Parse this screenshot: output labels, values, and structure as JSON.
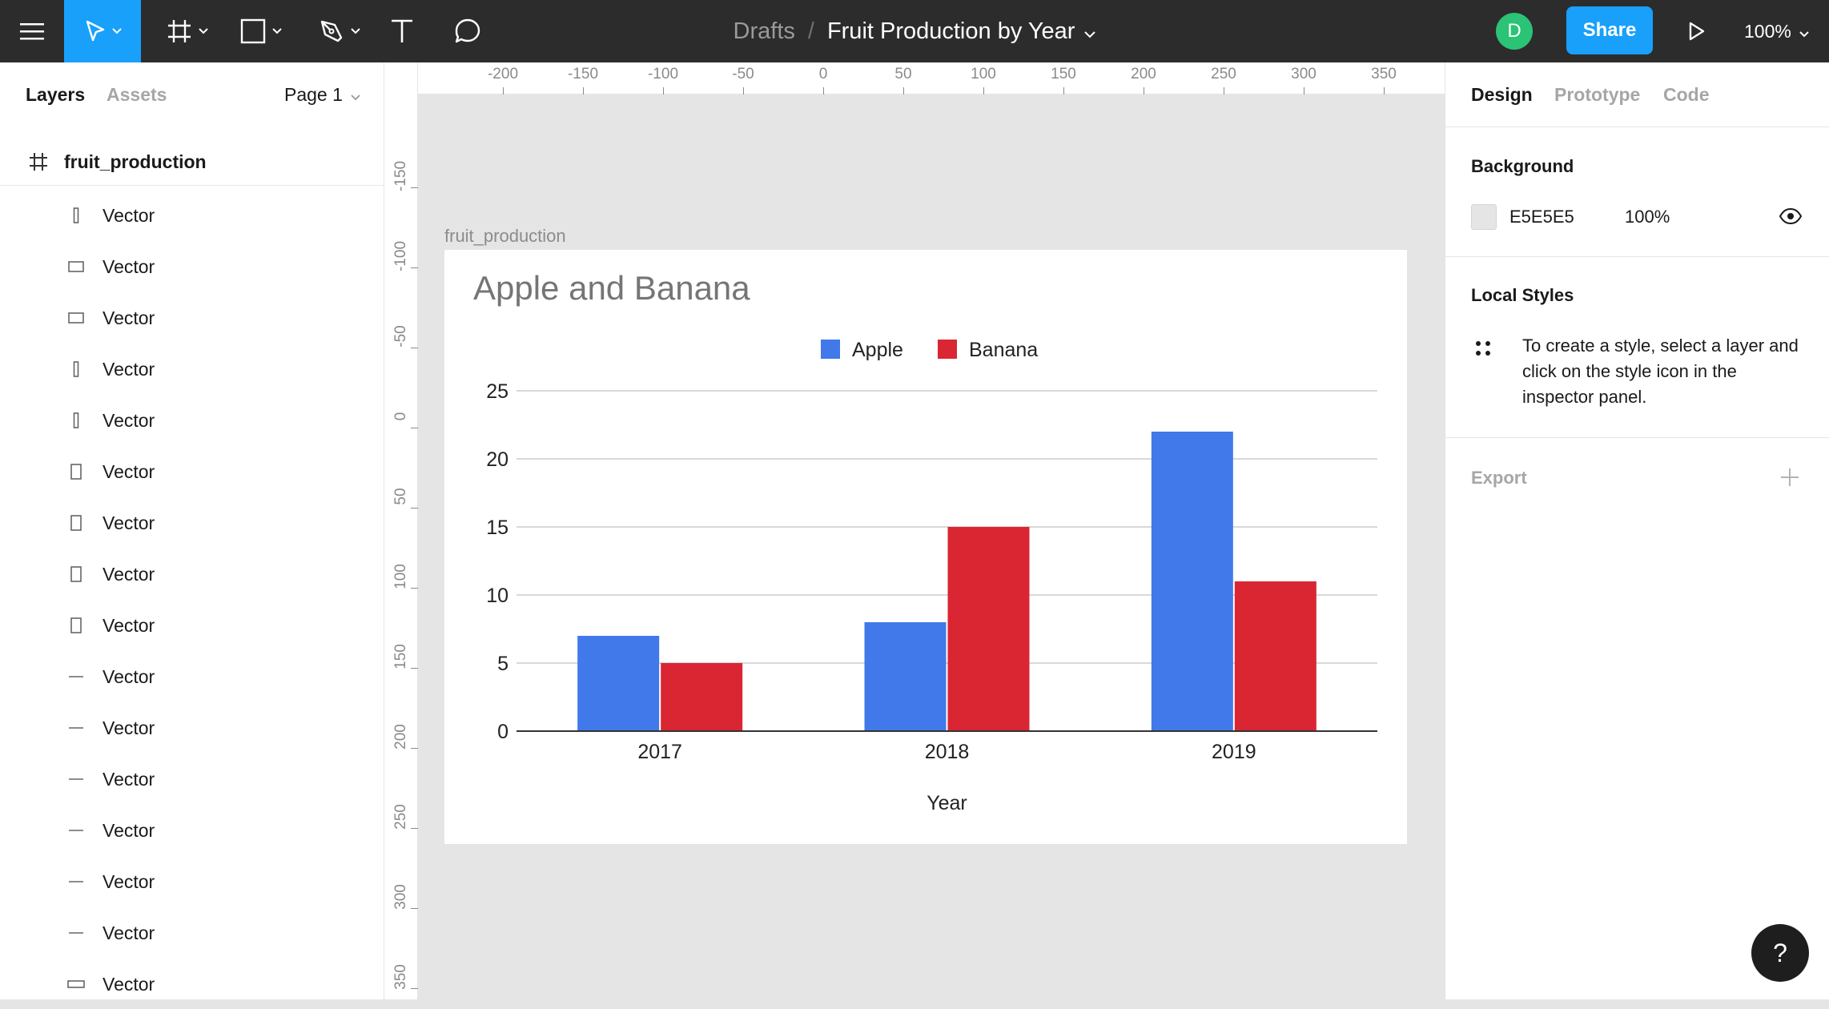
{
  "toolbar": {
    "breadcrumb_root": "Drafts",
    "breadcrumb_sep": "/",
    "file_name": "Fruit Production by Year",
    "avatar_initial": "D",
    "share_label": "Share",
    "zoom": "100%",
    "icons": [
      "menu-icon",
      "move-tool-icon",
      "frame-tool-icon",
      "rectangle-tool-icon",
      "pen-tool-icon",
      "text-tool-icon",
      "comment-tool-icon",
      "present-icon"
    ],
    "accent_color": "#18a0fb"
  },
  "left_panel": {
    "tab_layers": "Layers",
    "tab_assets": "Assets",
    "page": "Page 1",
    "frame_name": "fruit_production",
    "layers": [
      {
        "label": "Vector",
        "icon": "thin-vertical"
      },
      {
        "label": "Vector",
        "icon": "rect"
      },
      {
        "label": "Vector",
        "icon": "rect"
      },
      {
        "label": "Vector",
        "icon": "thin-vertical"
      },
      {
        "label": "Vector",
        "icon": "thin-vertical"
      },
      {
        "label": "Vector",
        "icon": "tall-rect"
      },
      {
        "label": "Vector",
        "icon": "tall-rect"
      },
      {
        "label": "Vector",
        "icon": "tall-rect"
      },
      {
        "label": "Vector",
        "icon": "tall-rect"
      },
      {
        "label": "Vector",
        "icon": "line"
      },
      {
        "label": "Vector",
        "icon": "line"
      },
      {
        "label": "Vector",
        "icon": "line"
      },
      {
        "label": "Vector",
        "icon": "line"
      },
      {
        "label": "Vector",
        "icon": "line"
      },
      {
        "label": "Vector",
        "icon": "line"
      },
      {
        "label": "Vector",
        "icon": "flat-rect"
      }
    ]
  },
  "right_panel": {
    "tab_design": "Design",
    "tab_prototype": "Prototype",
    "tab_code": "Code",
    "background_heading": "Background",
    "background_hex": "E5E5E5",
    "background_opacity": "100%",
    "background_color": "#e5e5e5",
    "local_styles_heading": "Local Styles",
    "local_styles_text": "To create a style, select a layer and click on the style icon in the inspector panel.",
    "export_heading": "Export"
  },
  "rulers": {
    "top": [
      "-200",
      "-150",
      "-100",
      "-50",
      "0",
      "50",
      "100",
      "150",
      "200",
      "250",
      "300",
      "350"
    ],
    "left": [
      "-150",
      "-100",
      "-50",
      "0",
      "50",
      "100",
      "150",
      "200",
      "250",
      "300",
      "350"
    ]
  },
  "canvas": {
    "frame_label": "fruit_production",
    "help_label": "?"
  },
  "chart_data": {
    "type": "bar",
    "title": "Apple and Banana",
    "xlabel": "Year",
    "ylabel": "",
    "categories": [
      "2017",
      "2018",
      "2019"
    ],
    "series": [
      {
        "name": "Apple",
        "values": [
          7,
          8,
          22
        ],
        "color": "#4179ea"
      },
      {
        "name": "Banana",
        "values": [
          5,
          15,
          11
        ],
        "color": "#da2633"
      }
    ],
    "ylim": [
      0,
      25
    ],
    "yticks": [
      "0",
      "5",
      "10",
      "15",
      "20",
      "25"
    ],
    "grid": true,
    "legend": "top-center"
  }
}
